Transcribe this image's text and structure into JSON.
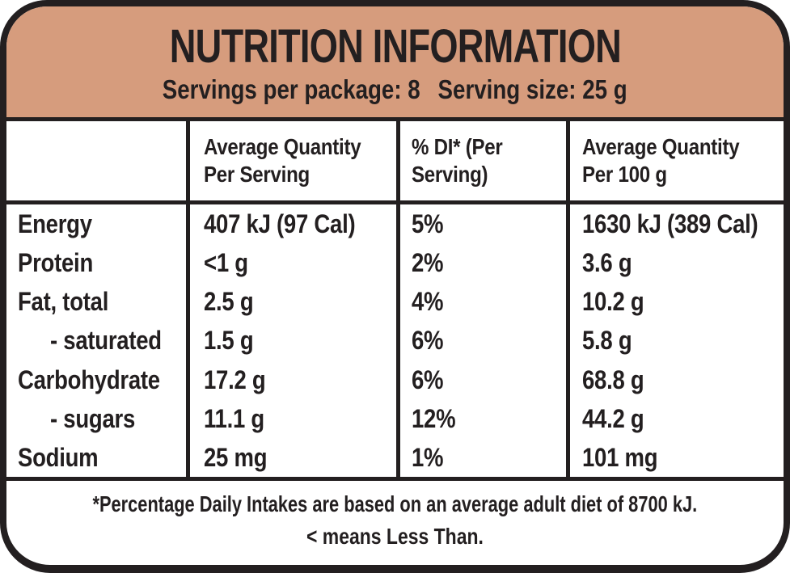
{
  "label": {
    "title": "NUTRITION INFORMATION",
    "servings_per_package": "Servings per package: 8",
    "serving_size": "Serving size: 25 g"
  },
  "table": {
    "col_headers": {
      "per_serving": {
        "line1": "Average Quantity",
        "line2": "Per Serving"
      },
      "daily_intake": {
        "line1": "% DI* (Per",
        "line2": "Serving)"
      },
      "per_100g": {
        "line1": "Average Quantity",
        "line2": "Per 100 g"
      }
    },
    "rows": [
      {
        "name": "Energy",
        "per_serving": "407 kJ (97 Cal)",
        "di": "5%",
        "per_100g": "1630 kJ (389 Cal)"
      },
      {
        "name": "Protein",
        "per_serving": "<1 g",
        "di": "2%",
        "per_100g": "3.6 g"
      },
      {
        "name": "Fat, total",
        "per_serving": "2.5 g",
        "di": "4%",
        "per_100g": "10.2 g"
      },
      {
        "name": "- saturated",
        "per_serving": "1.5 g",
        "di": "6%",
        "per_100g": "5.8 g"
      },
      {
        "name": "Carbohydrate",
        "per_serving": "17.2 g",
        "di": "6%",
        "per_100g": "68.8 g"
      },
      {
        "name": "- sugars",
        "per_serving": "11.1 g",
        "di": "12%",
        "per_100g": "44.2 g"
      },
      {
        "name": "Sodium",
        "per_serving": "25 mg",
        "di": "1%",
        "per_100g": "101 mg"
      }
    ]
  },
  "footnote": {
    "line1": "*Percentage Daily Intakes are based on an average adult diet of 8700 kJ.",
    "line2": "< means Less Than."
  },
  "colors": {
    "header_bg": "#d69c7d",
    "ink": "#231f20"
  }
}
